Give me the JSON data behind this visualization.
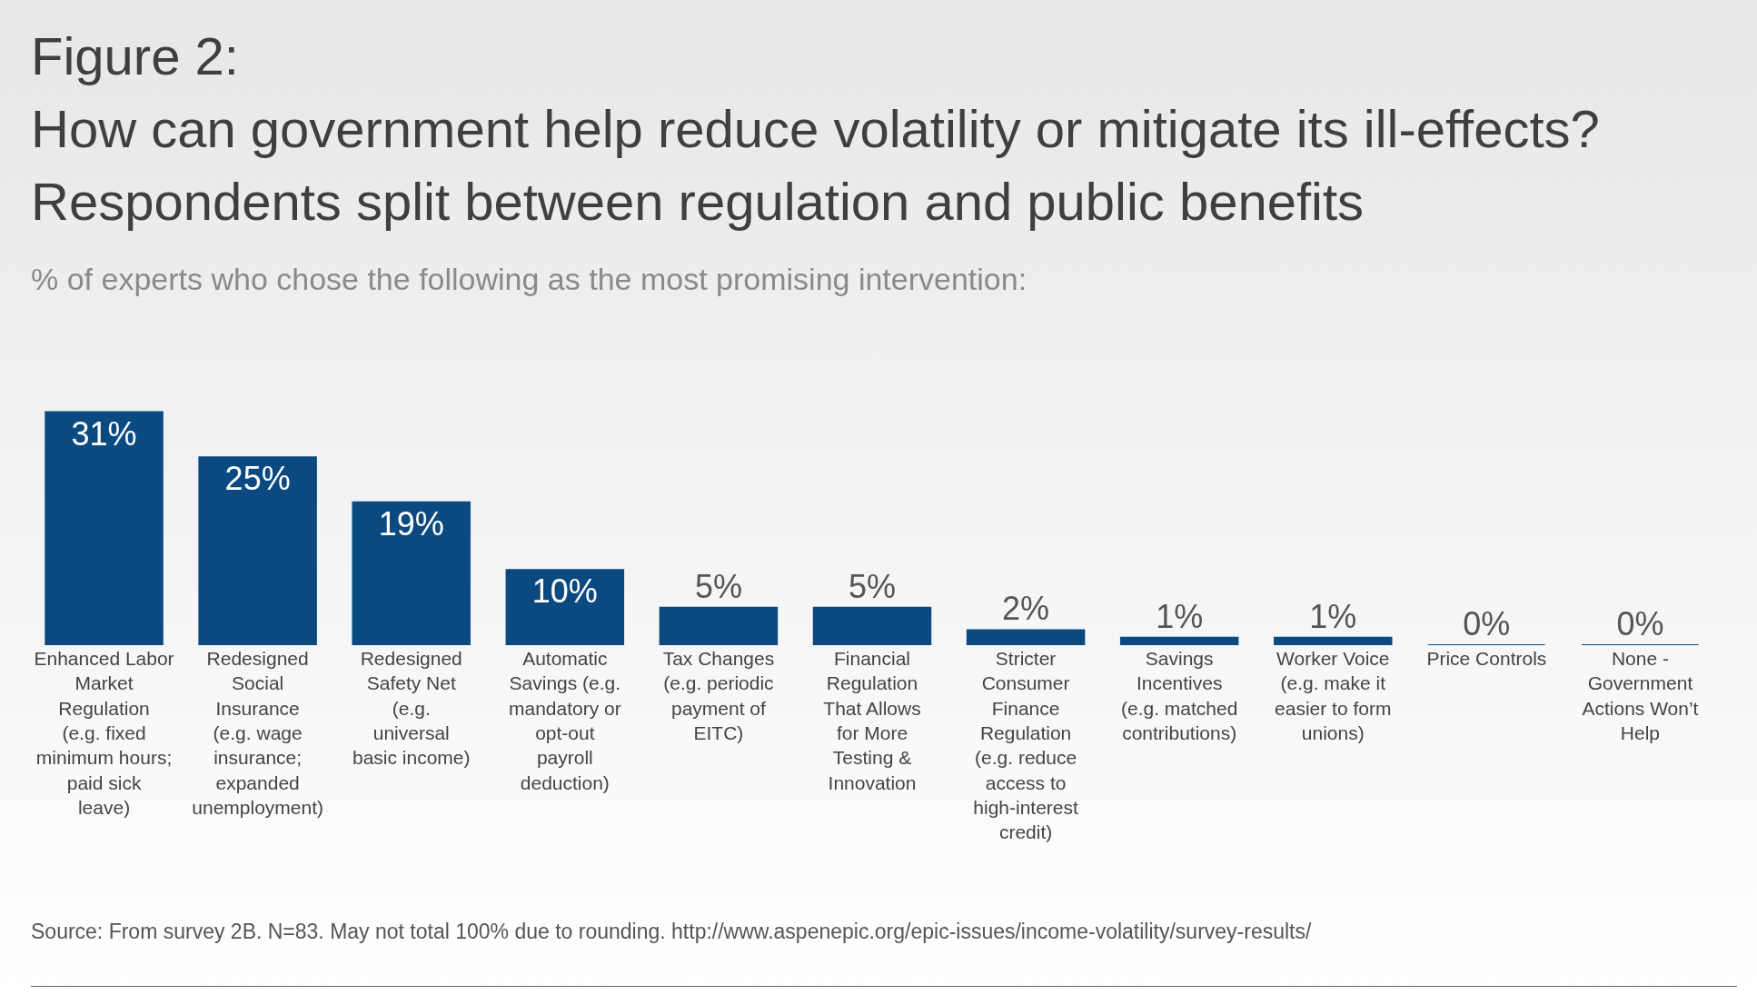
{
  "chart_data": {
    "type": "bar",
    "title": "Figure 2:\nHow can government help reduce volatility or mitigate its ill-effects?\nRespondents split between regulation and public benefits",
    "subtitle": "% of experts who chose the following as the most promising intervention:",
    "categories": [
      "Enhanced Labor Market Regulation (e.g. fixed minimum hours; paid sick leave)",
      "Redesigned Social Insurance (e.g. wage insurance; expanded unemployment)",
      "Redesigned Safety Net (e.g. universal basic income)",
      "Automatic Savings (e.g. mandatory or opt-out payroll deduction)",
      "Tax Changes (e.g. periodic payment of EITC)",
      "Financial Regulation That Allows for More Testing & Innovation",
      "Stricter Consumer Finance Regulation (e.g. reduce access to high-interest credit)",
      "Savings Incentives (e.g. matched contributions)",
      "Worker Voice (e.g. make it easier to form unions)",
      "Price Controls",
      "None - Government Actions Won’t Help"
    ],
    "values": [
      31,
      25,
      19,
      10,
      5,
      5,
      2,
      1,
      1,
      0,
      0
    ],
    "value_labels": [
      "31%",
      "25%",
      "19%",
      "10%",
      "5%",
      "5%",
      "2%",
      "1%",
      "1%",
      "0%",
      "0%"
    ],
    "color": "#0b4a80",
    "grid": false,
    "legend": false,
    "annotations": [
      "Source: From survey 2B. N=83. May not total 100% due to rounding. http://www.aspenepic.org/epic-issues/income-volatility/survey-results/"
    ]
  }
}
